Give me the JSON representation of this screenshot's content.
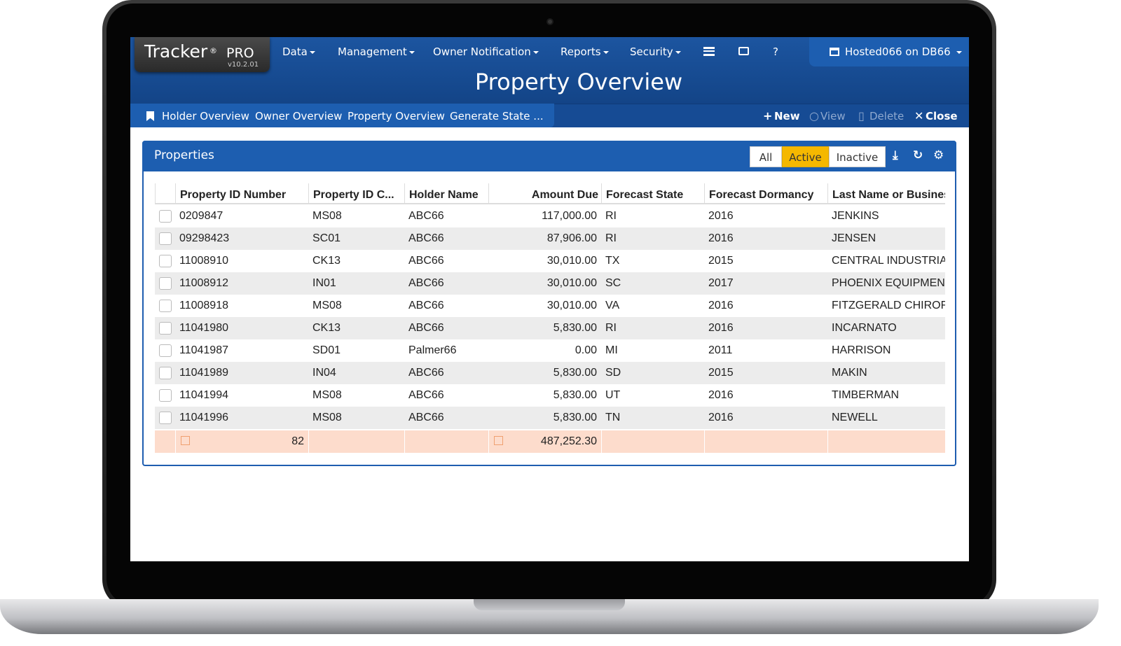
{
  "app": {
    "brand": "Tracker",
    "reg": "®",
    "edition": "PRO",
    "version": "v10.2.01"
  },
  "menu": [
    "Data",
    "Management",
    "Owner Notification",
    "Reports",
    "Security",
    "?"
  ],
  "user": "Hosted066 on DB66",
  "page_title": "Property Overview",
  "tabs": [
    "Holder Overview",
    "Owner Overview",
    "Property Overview",
    "Generate State ..."
  ],
  "actions": [
    "New",
    "View",
    "Delete",
    "Close"
  ],
  "panel": {
    "title": "Properties",
    "filters": [
      "All",
      "Active",
      "Inactive"
    ]
  },
  "table": {
    "columns": [
      "Property ID Number",
      "Property ID C...",
      "Holder Name",
      "Amount Due",
      "Forecast State",
      "Forecast Dormancy",
      "Last Name or Busines"
    ],
    "rows": [
      [
        "0209847",
        "MS08",
        "ABC66",
        "117,000.00",
        "RI",
        "2016",
        "JENKINS"
      ],
      [
        "09298423",
        "SC01",
        "ABC66",
        "87,906.00",
        "RI",
        "2016",
        "JENSEN"
      ],
      [
        "11008910",
        "CK13",
        "ABC66",
        "30,010.00",
        "TX",
        "2015",
        "CENTRAL INDUSTRIA"
      ],
      [
        "11008912",
        "IN01",
        "ABC66",
        "30,010.00",
        "SC",
        "2017",
        "PHOENIX EQUIPMEN"
      ],
      [
        "11008918",
        "MS08",
        "ABC66",
        "30,010.00",
        "VA",
        "2016",
        "FITZGERALD CHIROF"
      ],
      [
        "11041980",
        "CK13",
        "ABC66",
        "5,830.00",
        "RI",
        "2016",
        "INCARNATO"
      ],
      [
        "11041987",
        "SD01",
        "Palmer66",
        "0.00",
        "MI",
        "2011",
        "HARRISON"
      ],
      [
        "11041989",
        "IN04",
        "ABC66",
        "5,830.00",
        "SD",
        "2015",
        "MAKIN"
      ],
      [
        "11041994",
        "MS08",
        "ABC66",
        "5,830.00",
        "UT",
        "2016",
        "TIMBERMAN"
      ],
      [
        "11041996",
        "MS08",
        "ABC66",
        "5,830.00",
        "TN",
        "2016",
        "NEWELL"
      ]
    ],
    "totals": {
      "count": "82",
      "amount": "487,252.30"
    }
  }
}
